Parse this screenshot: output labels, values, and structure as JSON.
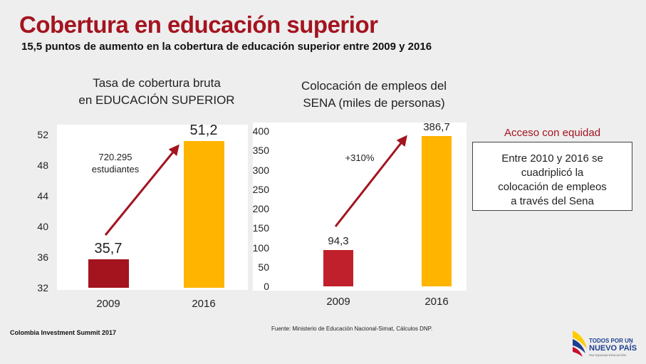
{
  "slide": {
    "title": "Cobertura en educación superior",
    "subtitle": "15,5 puntos de aumento en la cobertura de educación superior entre 2009 y 2016"
  },
  "chart_data": [
    {
      "type": "bar",
      "title": [
        "Tasa de cobertura bruta",
        "en EDUCACIÓN SUPERIOR"
      ],
      "categories": [
        "2009",
        "2016"
      ],
      "values": [
        35.7,
        51.2
      ],
      "value_labels": [
        "35,7",
        "51,2"
      ],
      "ylim": [
        32,
        52
      ],
      "yticks": [
        32,
        36,
        40,
        44,
        48,
        52
      ],
      "ytick_labels": [
        "32",
        "36",
        "40",
        "44",
        "48",
        "52"
      ],
      "colors": [
        "#a3141f",
        "#ffb400"
      ],
      "annotation": [
        "720.295",
        "estudiantes"
      ],
      "xlabel": "",
      "ylabel": ""
    },
    {
      "type": "bar",
      "title": [
        "Colocación de empleos del",
        "SENA (miles de personas)"
      ],
      "categories": [
        "2009",
        "2016"
      ],
      "values": [
        94.3,
        386.7
      ],
      "value_labels": [
        "94,3",
        "386,7"
      ],
      "ylim": [
        0,
        400
      ],
      "yticks": [
        0,
        50,
        100,
        150,
        200,
        250,
        300,
        350,
        400
      ],
      "ytick_labels": [
        "0",
        "50",
        "100",
        "150",
        "200",
        "250",
        "300",
        "350",
        "400"
      ],
      "colors": [
        "#c0202b",
        "#ffb400"
      ],
      "annotation": [
        "+310%"
      ],
      "xlabel": "",
      "ylabel": ""
    }
  ],
  "infobox": {
    "heading": "Acceso con equidad",
    "lines": [
      "Entre 2010 y 2016 se",
      "cuadriplicó la",
      "colocación de empleos",
      "a través del Sena"
    ]
  },
  "footer": {
    "event": "Colombia Investment Summit 2017",
    "source": "Fuente: Ministerio de Educación Nacional-Simat, Cálculos DNP."
  },
  "logo": {
    "line1": "TODOS POR UN",
    "line2": "NUEVO PAÍS",
    "tagline": "PAZ  EQUIDAD  EDUCACIÓN"
  },
  "colors": {
    "brand_red": "#a3141f",
    "accent_yellow": "#ffb400",
    "arrow_red": "#a3141f",
    "logo_blue": "#1d3f8f"
  }
}
